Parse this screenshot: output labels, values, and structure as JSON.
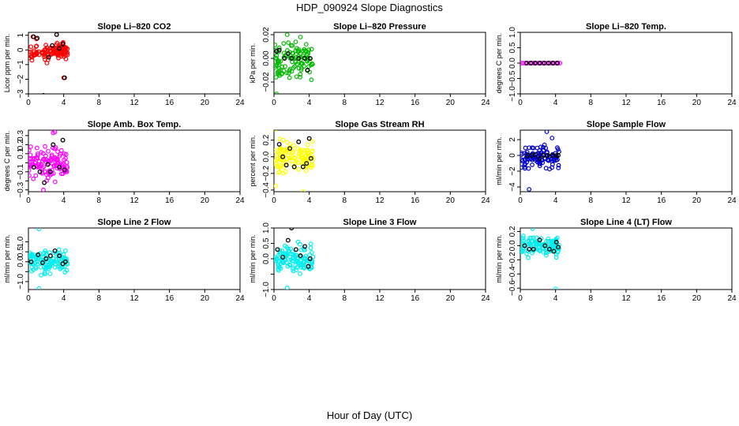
{
  "title": "HDP_090924  Slope Diagnostics",
  "xlabel": "Hour of Day (UTC)",
  "chart_data": [
    {
      "type": "scatter",
      "title": "Slope Li–820 CO2",
      "ylabel": "Licor ppm per min.",
      "color": "#ff0000",
      "xlim": [
        0,
        24
      ],
      "xticks": [
        0,
        4,
        8,
        12,
        16,
        20,
        24
      ],
      "ylim": [
        -3,
        1.2
      ],
      "yticks": [
        -3,
        -2,
        -1,
        0,
        1
      ],
      "outliers": [
        {
          "x": 0.5,
          "y": 0.9
        },
        {
          "x": 0.9,
          "y": 0.75
        },
        {
          "x": 1.6,
          "y": -3.2
        },
        {
          "x": 3.2,
          "y": 1.05
        },
        {
          "x": 4.0,
          "y": -1.9
        },
        {
          "x": 2.1,
          "y": -0.9
        }
      ],
      "band": [
        -0.8,
        0.6
      ],
      "blacks": [
        {
          "x": 0.6,
          "y": 0.9
        },
        {
          "x": 1.0,
          "y": 0.8
        },
        {
          "x": 1.7,
          "y": -3.1
        },
        {
          "x": 2.7,
          "y": 0.3
        },
        {
          "x": 3.2,
          "y": 1.05
        },
        {
          "x": 3.9,
          "y": 0.4
        },
        {
          "x": 4.1,
          "y": -1.9
        },
        {
          "x": 2.3,
          "y": -0.5
        },
        {
          "x": 3.5,
          "y": 0.1
        }
      ]
    },
    {
      "type": "scatter",
      "title": "Slope Li–820 Pressure",
      "ylabel": "kPa per min.",
      "color": "#00bb00",
      "xlim": [
        0,
        24
      ],
      "xticks": [
        0,
        4,
        8,
        12,
        16,
        20,
        24
      ],
      "ylim": [
        -0.03,
        0.022
      ],
      "yticks": [
        -0.02,
        0,
        0.02
      ],
      "ytickLabels": [
        "−0.02",
        "0.00",
        "0.02"
      ],
      "outliers": [
        {
          "x": 0.3,
          "y": -0.03
        },
        {
          "x": 1.5,
          "y": 0.02
        },
        {
          "x": 3.0,
          "y": 0.018
        }
      ],
      "band": [
        -0.022,
        0.018
      ],
      "blacks": [
        {
          "x": 0.3,
          "y": 0.006
        },
        {
          "x": 0.6,
          "y": 0.007
        },
        {
          "x": 1.2,
          "y": 0.0
        },
        {
          "x": 2.0,
          "y": 0.0
        },
        {
          "x": 2.8,
          "y": 0.0
        },
        {
          "x": 3.5,
          "y": 0.0
        },
        {
          "x": 4.1,
          "y": 0.0
        },
        {
          "x": 3.8,
          "y": -0.01
        },
        {
          "x": 1.6,
          "y": 0.004
        }
      ]
    },
    {
      "type": "scatter",
      "title": "Slope Li–820 Temp.",
      "ylabel": "degrees C per min.",
      "color": "#ff00ff",
      "xlim": [
        0,
        24
      ],
      "xticks": [
        0,
        4,
        8,
        12,
        16,
        20,
        24
      ],
      "ylim": [
        -1,
        1
      ],
      "yticks": [
        -1,
        -0.5,
        0,
        0.5,
        1
      ],
      "ytickLabels": [
        "−1.0",
        "−0.5",
        "0.0",
        "0.5",
        "1.0"
      ],
      "outliers": [],
      "band": [
        0,
        0
      ],
      "blacks": [
        {
          "x": 0.7,
          "y": 0
        },
        {
          "x": 1.2,
          "y": 0
        },
        {
          "x": 1.7,
          "y": 0
        },
        {
          "x": 2.2,
          "y": 0
        },
        {
          "x": 2.7,
          "y": 0
        },
        {
          "x": 3.2,
          "y": 0
        },
        {
          "x": 3.7,
          "y": 0
        },
        {
          "x": 4.2,
          "y": 0
        }
      ]
    },
    {
      "type": "scatter",
      "title": "Slope Amb. Box Temp.",
      "ylabel": "degrees C per min.",
      "color": "#ff00ff",
      "xlim": [
        0,
        24
      ],
      "xticks": [
        0,
        4,
        8,
        12,
        16,
        20,
        24
      ],
      "ylim": [
        -0.32,
        0.36
      ],
      "yticks": [
        -0.3,
        -0.2,
        -0.1,
        0,
        0.1,
        0.2,
        0.3
      ],
      "ytickLabels": [
        "−0.3",
        "",
        "−0.1",
        "",
        "0.1",
        "0.2",
        "0.3"
      ],
      "outliers": [
        {
          "x": 2.8,
          "y": 0.33
        },
        {
          "x": 3.0,
          "y": 0.34
        },
        {
          "x": 1.7,
          "y": -0.3
        }
      ],
      "band": [
        -0.25,
        0.22
      ],
      "blacks": [
        {
          "x": 0.6,
          "y": -0.05
        },
        {
          "x": 1.3,
          "y": -0.1
        },
        {
          "x": 1.8,
          "y": -0.22
        },
        {
          "x": 2.5,
          "y": -0.1
        },
        {
          "x": 2.8,
          "y": 0.2
        },
        {
          "x": 3.5,
          "y": -0.05
        },
        {
          "x": 3.9,
          "y": 0.25
        },
        {
          "x": 4.1,
          "y": -0.08
        },
        {
          "x": 2.2,
          "y": -0.02
        }
      ]
    },
    {
      "type": "scatter",
      "title": "Slope Gas Stream RH",
      "ylabel": "percent per min.",
      "color": "#ffff00",
      "xlim": [
        0,
        24
      ],
      "xticks": [
        0,
        4,
        8,
        12,
        16,
        20,
        24
      ],
      "ylim": [
        -0.42,
        0.32
      ],
      "yticks": [
        -0.4,
        -0.2,
        0,
        0.2
      ],
      "ytickLabels": [
        "−0.4",
        "−0.2",
        "0.0",
        "0.2"
      ],
      "outliers": [
        {
          "x": 0.1,
          "y": 0.33
        },
        {
          "x": 0.2,
          "y": -0.35
        },
        {
          "x": 3.3,
          "y": -0.42
        }
      ],
      "band": [
        -0.28,
        0.25
      ],
      "blacks": [
        {
          "x": 0.6,
          "y": 0.15
        },
        {
          "x": 1.0,
          "y": 0.0
        },
        {
          "x": 1.4,
          "y": -0.1
        },
        {
          "x": 1.8,
          "y": 0.1
        },
        {
          "x": 2.3,
          "y": -0.12
        },
        {
          "x": 2.8,
          "y": 0.18
        },
        {
          "x": 3.3,
          "y": -0.12
        },
        {
          "x": 3.7,
          "y": -0.08
        },
        {
          "x": 4.0,
          "y": 0.22
        },
        {
          "x": 4.2,
          "y": -0.02
        }
      ]
    },
    {
      "type": "scatter",
      "title": "Slope Sample Flow",
      "ylabel": "ml/min per min.",
      "color": "#0000cc",
      "xlim": [
        0,
        24
      ],
      "xticks": [
        0,
        4,
        8,
        12,
        16,
        20,
        24
      ],
      "ylim": [
        -4.6,
        3.2
      ],
      "yticks": [
        -4,
        -2,
        0,
        2
      ],
      "ytickLabels": [
        "−4",
        "−2",
        "0",
        "2"
      ],
      "outliers": [
        {
          "x": 1.0,
          "y": -4.3
        },
        {
          "x": 3.0,
          "y": 3.0
        },
        {
          "x": 3.6,
          "y": 2.2
        }
      ],
      "band": [
        -2.3,
        1.8
      ],
      "blacks": [
        {
          "x": 0.8,
          "y": 0.0
        },
        {
          "x": 1.3,
          "y": 0.0
        },
        {
          "x": 1.7,
          "y": 0.1
        },
        {
          "x": 2.2,
          "y": -0.4
        },
        {
          "x": 2.6,
          "y": 0.0
        },
        {
          "x": 3.1,
          "y": 0.0
        },
        {
          "x": 3.6,
          "y": 0.0
        },
        {
          "x": 4.1,
          "y": 0.0
        },
        {
          "x": 4.3,
          "y": 0.0
        }
      ]
    },
    {
      "type": "scatter",
      "title": "Slope Line 2 Flow",
      "ylabel": "ml/min per min.",
      "color": "#00eeee",
      "xlim": [
        0,
        24
      ],
      "xticks": [
        0,
        4,
        8,
        12,
        16,
        20,
        24
      ],
      "ylim": [
        -1.4,
        1.7
      ],
      "yticks": [
        -1,
        -0.5,
        0,
        0.5,
        1
      ],
      "ytickLabels": [
        "−1.0",
        "",
        "0.0",
        "0.5",
        "1.0"
      ],
      "outliers": [
        {
          "x": 1.2,
          "y": 1.65
        },
        {
          "x": 1.2,
          "y": -1.35
        }
      ],
      "band": [
        -0.9,
        0.9
      ],
      "blacks": [
        {
          "x": 0.3,
          "y": 0.0
        },
        {
          "x": 1.1,
          "y": 0.35
        },
        {
          "x": 1.6,
          "y": -0.05
        },
        {
          "x": 2.0,
          "y": 0.15
        },
        {
          "x": 2.5,
          "y": 0.3
        },
        {
          "x": 3.0,
          "y": 0.55
        },
        {
          "x": 3.5,
          "y": 0.3
        },
        {
          "x": 3.9,
          "y": -0.1
        },
        {
          "x": 4.2,
          "y": 0.0
        }
      ]
    },
    {
      "type": "scatter",
      "title": "Slope Line 3 Flow",
      "ylabel": "ml/min per min.",
      "color": "#00eeee",
      "xlim": [
        0,
        24
      ],
      "xticks": [
        0,
        4,
        8,
        12,
        16,
        20,
        24
      ],
      "ylim": [
        -1,
        1
      ],
      "yticks": [
        -1,
        -0.5,
        0,
        0.5,
        1
      ],
      "ytickLabels": [
        "−1.0",
        "",
        "0.0",
        "0.5",
        "1.0"
      ],
      "outliers": [
        {
          "x": 1.5,
          "y": -0.95
        }
      ],
      "band": [
        -0.6,
        0.6
      ],
      "blacks": [
        {
          "x": 0.4,
          "y": 0.3
        },
        {
          "x": 1.0,
          "y": 0.05
        },
        {
          "x": 1.6,
          "y": 0.6
        },
        {
          "x": 2.0,
          "y": 1.0
        },
        {
          "x": 2.5,
          "y": 0.3
        },
        {
          "x": 3.0,
          "y": 0.1
        },
        {
          "x": 3.5,
          "y": 0.4
        },
        {
          "x": 3.9,
          "y": -0.25
        },
        {
          "x": 4.1,
          "y": 0.0
        }
      ]
    },
    {
      "type": "scatter",
      "title": "Slope Line 4 (LT) Flow",
      "ylabel": "ml/min per min.",
      "color": "#00eeee",
      "xlim": [
        0,
        24
      ],
      "xticks": [
        0,
        4,
        8,
        12,
        16,
        20,
        24
      ],
      "ylim": [
        -0.62,
        0.25
      ],
      "yticks": [
        -0.6,
        -0.4,
        -0.2,
        0,
        0.2
      ],
      "ytickLabels": [
        "−0.6",
        "−0.4",
        "−0.2",
        "0.0",
        "0.2"
      ],
      "outliers": [
        {
          "x": 4.0,
          "y": -0.61
        },
        {
          "x": 1.4,
          "y": 0.24
        }
      ],
      "band": [
        -0.2,
        0.2
      ],
      "blacks": [
        {
          "x": 0.5,
          "y": 0.0
        },
        {
          "x": 1.0,
          "y": -0.05
        },
        {
          "x": 1.5,
          "y": -0.05
        },
        {
          "x": 2.2,
          "y": 0.08
        },
        {
          "x": 2.8,
          "y": 0.0
        },
        {
          "x": 3.3,
          "y": -0.05
        },
        {
          "x": 3.8,
          "y": -0.08
        },
        {
          "x": 4.1,
          "y": 0.05
        },
        {
          "x": 4.3,
          "y": -0.02
        }
      ]
    }
  ]
}
